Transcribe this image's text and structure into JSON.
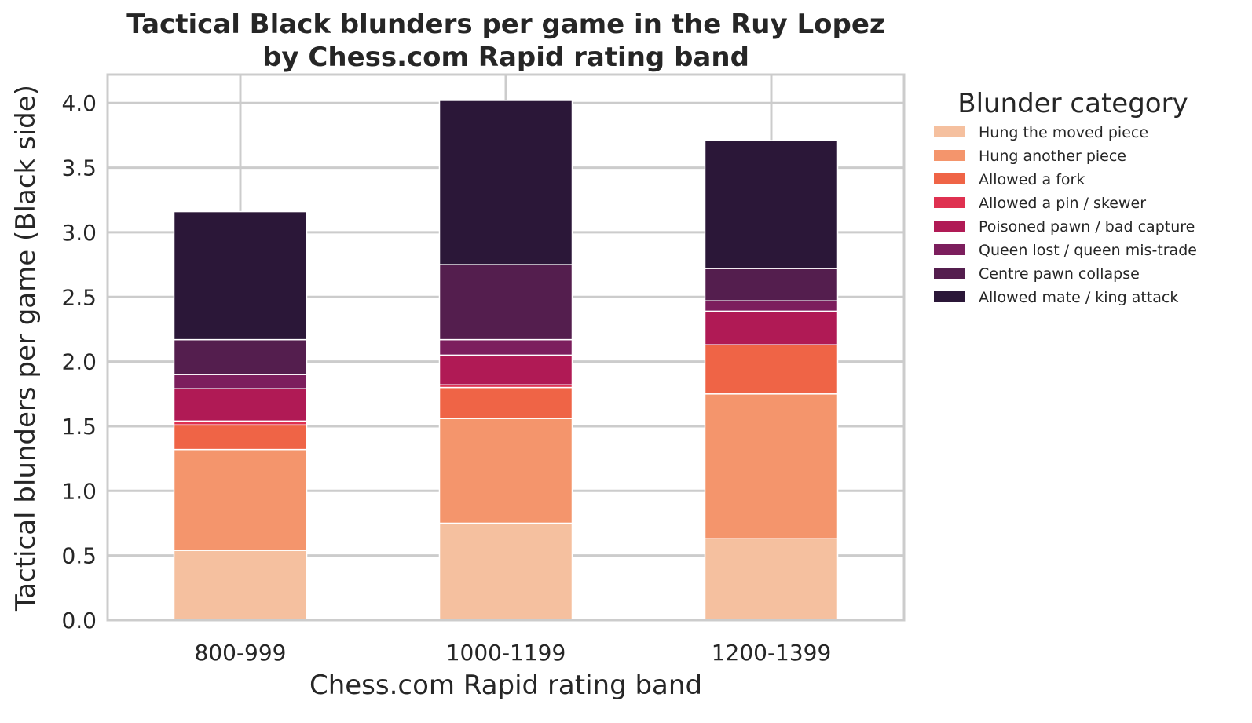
{
  "chart_data": {
    "type": "bar",
    "stacked": true,
    "title": "Tactical Black blunders per game in the Ruy Lopez",
    "subtitle": "by Chess.com Rapid rating band",
    "xlabel": "Chess.com Rapid rating band",
    "ylabel": "Tactical blunders per game (Black side)",
    "categories": [
      "800-999",
      "1000-1199",
      "1200-1399"
    ],
    "ylim": [
      0,
      4.22
    ],
    "yticks": [
      "0.0",
      "0.5",
      "1.0",
      "1.5",
      "2.0",
      "2.5",
      "3.0",
      "3.5",
      "4.0"
    ],
    "grid": true,
    "legend": {
      "title": "Blunder category",
      "placement": "outside-right"
    },
    "series": [
      {
        "name": "Hung the moved piece",
        "color": "#f5c09f",
        "values": [
          0.54,
          0.75,
          0.63
        ]
      },
      {
        "name": "Hung another piece",
        "color": "#f4956c",
        "values": [
          0.78,
          0.81,
          1.12
        ]
      },
      {
        "name": "Allowed a fork",
        "color": "#ef6446",
        "values": [
          0.19,
          0.24,
          0.38
        ]
      },
      {
        "name": "Allowed a pin / skewer",
        "color": "#df3150",
        "values": [
          0.03,
          0.02,
          0.0
        ]
      },
      {
        "name": "Poisoned pawn / bad capture",
        "color": "#b01a55",
        "values": [
          0.25,
          0.23,
          0.26
        ]
      },
      {
        "name": "Queen lost / queen mis-trade",
        "color": "#7c1e5d",
        "values": [
          0.11,
          0.12,
          0.08
        ]
      },
      {
        "name": "Centre pawn collapse",
        "color": "#541e4e",
        "values": [
          0.27,
          0.58,
          0.25
        ]
      },
      {
        "name": "Allowed mate / king attack",
        "color": "#2b1738",
        "values": [
          0.99,
          1.27,
          0.99
        ]
      }
    ]
  }
}
